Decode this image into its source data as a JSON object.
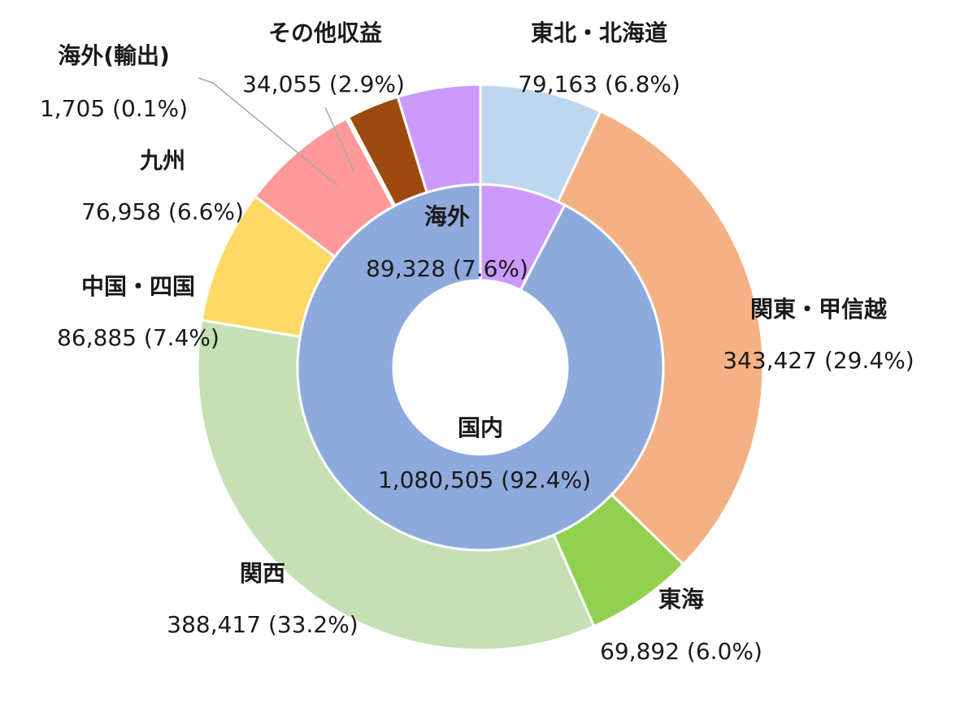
{
  "chart_data": {
    "type": "pie",
    "variant": "nested-donut",
    "title": "",
    "legend": "none",
    "inner_ring": {
      "slices": [
        {
          "name": "海外",
          "value": 89328,
          "percent_label": "89,328 (7.6%)",
          "color": "#CC99FF"
        },
        {
          "name": "国内",
          "value": 1080505,
          "percent_label": "1,080,505 (92.4%)",
          "color": "#8EAADC"
        }
      ]
    },
    "outer_ring": {
      "slices": [
        {
          "name": "東北・北海道",
          "value": 79163,
          "percent_label": "79,163 (6.8%)",
          "color": "#BDD7EE"
        },
        {
          "name": "関東・甲信越",
          "value": 343427,
          "percent_label": "343,427 (29.4%)",
          "color": "#F4B183"
        },
        {
          "name": "東海",
          "value": 69892,
          "percent_label": "69,892 (6.0%)",
          "color": "#92D050"
        },
        {
          "name": "関西",
          "value": 388417,
          "percent_label": "388,417 (33.2%)",
          "color": "#C5E0B4"
        },
        {
          "name": "中国・四国",
          "value": 86885,
          "percent_label": "86,885 (7.4%)",
          "color": "#FFD966"
        },
        {
          "name": "九州",
          "value": 76958,
          "percent_label": "76,958 (6.6%)",
          "color": "#FF9999"
        },
        {
          "name": "海外(輸出)",
          "value": 1705,
          "percent_label": "1,705 (0.1%)",
          "color": "#FF9999"
        },
        {
          "name": "その他収益",
          "value": 34055,
          "percent_label": "34,055 (2.9%)",
          "color": "#9C4A0E"
        },
        {
          "name": "海外",
          "value": 53568,
          "percent_label": "",
          "color": "#CC99FF"
        }
      ]
    }
  }
}
